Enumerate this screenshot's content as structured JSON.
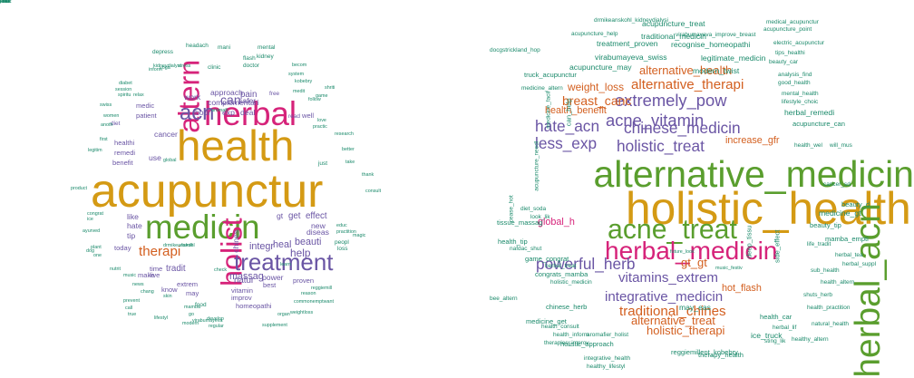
{
  "palette": {
    "teal": "#1b8a6b",
    "orange": "#d35f1f",
    "purple": "#6a55a4",
    "magenta": "#d6237a",
    "green": "#5a9e2e",
    "gold": "#d49a14"
  },
  "left_cloud": [
    {
      "t": "acupunctur",
      "s": 48,
      "c": "gold"
    },
    {
      "t": "health",
      "s": 44,
      "c": "gold"
    },
    {
      "t": "medicin",
      "s": 34,
      "c": "green"
    },
    {
      "t": "herbal",
      "s": 34,
      "c": "magenta"
    },
    {
      "t": "altern",
      "s": 30,
      "c": "magenta",
      "r": true
    },
    {
      "t": "holist",
      "s": 30,
      "c": "magenta",
      "r": true
    },
    {
      "t": "treatment",
      "s": 24,
      "c": "purple"
    },
    {
      "t": "acn",
      "s": 22,
      "c": "purple"
    },
    {
      "t": "therapi",
      "s": 14,
      "c": "orange"
    },
    {
      "t": "can",
      "s": 13,
      "c": "purple"
    },
    {
      "t": "help",
      "s": 11,
      "c": "purple"
    },
    {
      "t": "integr",
      "s": 10,
      "c": "purple"
    },
    {
      "t": "heal",
      "s": 10,
      "c": "purple"
    },
    {
      "t": "beauti",
      "s": 10,
      "c": "purple"
    },
    {
      "t": "massag",
      "s": 10,
      "c": "purple"
    },
    {
      "t": "natur",
      "s": 9,
      "c": "purple"
    },
    {
      "t": "tradit",
      "s": 9,
      "c": "purple"
    },
    {
      "t": "power",
      "s": 8,
      "c": "purple"
    },
    {
      "t": "exp",
      "s": 8,
      "c": "purple"
    },
    {
      "t": "deal",
      "s": 8,
      "c": "purple"
    },
    {
      "t": "bodi",
      "s": 8,
      "c": "purple"
    },
    {
      "t": "pain",
      "s": 9,
      "c": "purple"
    },
    {
      "t": "safer",
      "s": 8,
      "c": "purple"
    },
    {
      "t": "complementari",
      "s": 8,
      "c": "purple"
    },
    {
      "t": "work",
      "s": 8,
      "c": "purple"
    },
    {
      "t": "approach",
      "s": 8,
      "c": "purple"
    },
    {
      "t": "cancer",
      "s": 8,
      "c": "purple"
    },
    {
      "t": "use",
      "s": 8,
      "c": "purple"
    },
    {
      "t": "gt",
      "s": 8,
      "c": "purple"
    },
    {
      "t": "get",
      "s": 9,
      "c": "purple"
    },
    {
      "t": "effect",
      "s": 9,
      "c": "purple"
    },
    {
      "t": "new",
      "s": 8,
      "c": "purple"
    },
    {
      "t": "diseas",
      "s": 8,
      "c": "purple"
    },
    {
      "t": "like",
      "s": 8,
      "c": "purple"
    },
    {
      "t": "hate",
      "s": 8,
      "c": "purple"
    },
    {
      "t": "tip",
      "s": 8,
      "c": "purple"
    },
    {
      "t": "extrem",
      "s": 7,
      "c": "purple"
    },
    {
      "t": "vitamin",
      "s": 7,
      "c": "purple"
    },
    {
      "t": "improv",
      "s": 7,
      "c": "purple"
    },
    {
      "t": "homeopathi",
      "s": 7,
      "c": "purple"
    },
    {
      "t": "best",
      "s": 7,
      "c": "purple"
    },
    {
      "t": "proven",
      "s": 7,
      "c": "purple"
    },
    {
      "t": "may",
      "s": 7,
      "c": "purple"
    },
    {
      "t": "chines",
      "s": 8,
      "c": "purple",
      "r": true
    },
    {
      "t": "time",
      "s": 7,
      "c": "purple"
    },
    {
      "t": "live",
      "s": 7,
      "c": "purple"
    },
    {
      "t": "today",
      "s": 7,
      "c": "purple"
    },
    {
      "t": "make",
      "s": 7,
      "c": "purple"
    },
    {
      "t": "know",
      "s": 7,
      "c": "purple"
    },
    {
      "t": "healthi",
      "s": 7,
      "c": "purple"
    },
    {
      "t": "patient",
      "s": 7,
      "c": "purple"
    },
    {
      "t": "medic",
      "s": 7,
      "c": "purple"
    },
    {
      "t": "remedi",
      "s": 7,
      "c": "purple"
    },
    {
      "t": "benefit",
      "s": 7,
      "c": "purple"
    },
    {
      "t": "diet",
      "s": 6,
      "c": "purple"
    },
    {
      "t": "well",
      "s": 7,
      "c": "purple"
    },
    {
      "t": "read",
      "s": 6,
      "c": "purple"
    },
    {
      "t": "free",
      "s": 6,
      "c": "purple"
    },
    {
      "t": "peopl",
      "s": 6,
      "c": "teal"
    },
    {
      "t": "loss",
      "s": 6,
      "c": "teal"
    },
    {
      "t": "just",
      "s": 6,
      "c": "teal"
    },
    {
      "t": "food",
      "s": 6,
      "c": "teal"
    },
    {
      "t": "clinic",
      "s": 6,
      "c": "teal"
    },
    {
      "t": "doctor",
      "s": 6,
      "c": "teal"
    },
    {
      "t": "flash",
      "s": 6,
      "c": "teal"
    },
    {
      "t": "kidney",
      "s": 6,
      "c": "teal"
    },
    {
      "t": "mani",
      "s": 6,
      "c": "teal"
    },
    {
      "t": "mental",
      "s": 6,
      "c": "teal"
    },
    {
      "t": "headach",
      "s": 6,
      "c": "teal"
    },
    {
      "t": "depress",
      "s": 6,
      "c": "teal"
    },
    {
      "t": "kidneydialysi",
      "s": 5,
      "c": "teal"
    },
    {
      "t": "yoga",
      "s": 5,
      "c": "teal"
    },
    {
      "t": "stress",
      "s": 5,
      "c": "teal"
    },
    {
      "t": "inform",
      "s": 5,
      "c": "teal"
    },
    {
      "t": "diabet",
      "s": 5,
      "c": "teal"
    },
    {
      "t": "session",
      "s": 5,
      "c": "teal"
    },
    {
      "t": "spiritu",
      "s": 5,
      "c": "teal"
    },
    {
      "t": "relax",
      "s": 5,
      "c": "teal"
    },
    {
      "t": "swiss",
      "s": 5,
      "c": "teal"
    },
    {
      "t": "women",
      "s": 5,
      "c": "teal"
    },
    {
      "t": "anoth",
      "s": 5,
      "c": "teal"
    },
    {
      "t": "first",
      "s": 5,
      "c": "teal"
    },
    {
      "t": "legitim",
      "s": 5,
      "c": "teal"
    },
    {
      "t": "product",
      "s": 5,
      "c": "teal"
    },
    {
      "t": "congrat",
      "s": 5,
      "c": "teal"
    },
    {
      "t": "ice",
      "s": 5,
      "c": "teal"
    },
    {
      "t": "ayurved",
      "s": 5,
      "c": "teal"
    },
    {
      "t": "plant",
      "s": 5,
      "c": "teal"
    },
    {
      "t": "dog",
      "s": 5,
      "c": "teal"
    },
    {
      "t": "one",
      "s": 5,
      "c": "teal"
    },
    {
      "t": "nutrit",
      "s": 5,
      "c": "teal"
    },
    {
      "t": "music",
      "s": 5,
      "c": "teal"
    },
    {
      "t": "news",
      "s": 5,
      "c": "teal"
    },
    {
      "t": "chang",
      "s": 5,
      "c": "teal"
    },
    {
      "t": "prevent",
      "s": 5,
      "c": "teal"
    },
    {
      "t": "call",
      "s": 5,
      "c": "teal"
    },
    {
      "t": "true",
      "s": 5,
      "c": "teal"
    },
    {
      "t": "lifestyl",
      "s": 5,
      "c": "teal"
    },
    {
      "t": "modern",
      "s": 5,
      "c": "teal"
    },
    {
      "t": "virabumayeva",
      "s": 5,
      "c": "teal"
    },
    {
      "t": "regular",
      "s": 5,
      "c": "teal"
    },
    {
      "t": "supplement",
      "s": 5,
      "c": "teal"
    },
    {
      "t": "organ",
      "s": 5,
      "c": "teal"
    },
    {
      "t": "weightloss",
      "s": 5,
      "c": "teal"
    },
    {
      "t": "commonemptwant",
      "s": 5,
      "c": "teal"
    },
    {
      "t": "reggiemill",
      "s": 5,
      "c": "teal"
    },
    {
      "t": "reason",
      "s": 5,
      "c": "teal"
    },
    {
      "t": "practition",
      "s": 5,
      "c": "teal"
    },
    {
      "t": "educ",
      "s": 5,
      "c": "teal"
    },
    {
      "t": "magic",
      "s": 5,
      "c": "teal"
    },
    {
      "t": "consult",
      "s": 5,
      "c": "teal"
    },
    {
      "t": "thank",
      "s": 5,
      "c": "teal"
    },
    {
      "t": "take",
      "s": 5,
      "c": "teal"
    },
    {
      "t": "research",
      "s": 5,
      "c": "teal"
    },
    {
      "t": "better",
      "s": 5,
      "c": "teal"
    },
    {
      "t": "love",
      "s": 5,
      "c": "teal"
    },
    {
      "t": "practic",
      "s": 5,
      "c": "teal"
    },
    {
      "t": "follow",
      "s": 5,
      "c": "teal"
    },
    {
      "t": "game",
      "s": 5,
      "c": "teal"
    },
    {
      "t": "medit",
      "s": 5,
      "c": "teal"
    },
    {
      "t": "system",
      "s": 5,
      "c": "teal"
    },
    {
      "t": "kobebry",
      "s": 5,
      "c": "teal"
    },
    {
      "t": "becom",
      "s": 5,
      "c": "teal"
    },
    {
      "t": "shriti",
      "s": 5,
      "c": "teal"
    },
    {
      "t": "aromafi",
      "s": 5,
      "c": "teal"
    },
    {
      "t": "global",
      "s": 5,
      "c": "teal"
    },
    {
      "t": "develop",
      "s": 5,
      "c": "teal"
    },
    {
      "t": "learn",
      "s": 5,
      "c": "teal"
    },
    {
      "t": "check",
      "s": 5,
      "c": "teal"
    },
    {
      "t": "drmikeanskohl",
      "s": 5,
      "c": "teal"
    },
    {
      "t": "famili",
      "s": 5,
      "c": "teal"
    },
    {
      "t": "mamba",
      "s": 5,
      "c": "teal"
    },
    {
      "t": "skin",
      "s": 5,
      "c": "teal"
    },
    {
      "t": "go",
      "s": 5,
      "c": "teal"
    },
    {
      "t": "also",
      "s": 5,
      "c": "teal"
    },
    {
      "t": "studi",
      "s": 5,
      "c": "teal"
    },
    {
      "t": "now",
      "s": 5,
      "c": "teal"
    },
    {
      "t": "choic",
      "s": 5,
      "c": "teal"
    },
    {
      "t": "soda",
      "s": 5,
      "c": "teal"
    },
    {
      "t": "point",
      "s": 5,
      "c": "teal"
    },
    {
      "t": "side",
      "s": 5,
      "c": "teal"
    },
    {
      "t": "mind",
      "s": 5,
      "c": "teal"
    }
  ],
  "right_cloud": [
    {
      "t": "holistic_health",
      "s": 46,
      "c": "gold"
    },
    {
      "t": "alternative_medicin",
      "s": 38,
      "c": "green"
    },
    {
      "t": "herbal_acn",
      "s": 36,
      "c": "green",
      "r": true
    },
    {
      "t": "acne_treat",
      "s": 28,
      "c": "green"
    },
    {
      "t": "herbal_medicin",
      "s": 26,
      "c": "magenta"
    },
    {
      "t": "extremely_pow",
      "s": 17,
      "c": "purple"
    },
    {
      "t": "acne_vitamin",
      "s": 17,
      "c": "purple"
    },
    {
      "t": "chinese_medicin",
      "s": 16,
      "c": "purple"
    },
    {
      "t": "hate_acn",
      "s": 16,
      "c": "purple"
    },
    {
      "t": "less_exp",
      "s": 16,
      "c": "purple"
    },
    {
      "t": "holistic_treat",
      "s": 16,
      "c": "purple"
    },
    {
      "t": "powerful_herb",
      "s": 16,
      "c": "purple"
    },
    {
      "t": "vitamins_extrem",
      "s": 14,
      "c": "purple"
    },
    {
      "t": "integrative_medicin",
      "s": 14,
      "c": "purple"
    },
    {
      "t": "alternative_therapi",
      "s": 14,
      "c": "orange"
    },
    {
      "t": "alternative_health",
      "s": 12,
      "c": "orange"
    },
    {
      "t": "breast_canc",
      "s": 13,
      "c": "orange"
    },
    {
      "t": "weight_loss",
      "s": 11,
      "c": "orange"
    },
    {
      "t": "health_benefit",
      "s": 10,
      "c": "orange"
    },
    {
      "t": "traditional_chines",
      "s": 14,
      "c": "orange"
    },
    {
      "t": "alternative_treat",
      "s": 12,
      "c": "orange"
    },
    {
      "t": "holistic_therapi",
      "s": 12,
      "c": "orange"
    },
    {
      "t": "gt_gt",
      "s": 12,
      "c": "orange"
    },
    {
      "t": "global_h",
      "s": 10,
      "c": "magenta"
    },
    {
      "t": "increase_gfr",
      "s": 10,
      "c": "orange"
    },
    {
      "t": "hot_flash",
      "s": 10,
      "c": "orange"
    },
    {
      "t": "acupuncture_treat",
      "s": 8,
      "c": "teal"
    },
    {
      "t": "traditional_medicin",
      "s": 8,
      "c": "teal"
    },
    {
      "t": "treatment_proven",
      "s": 8,
      "c": "teal"
    },
    {
      "t": "recognise_homeopathi",
      "s": 8,
      "c": "teal"
    },
    {
      "t": "legitimate_medicin",
      "s": 8,
      "c": "teal"
    },
    {
      "t": "virabumayeva_swiss",
      "s": 8,
      "c": "teal"
    },
    {
      "t": "acupuncture_may",
      "s": 8,
      "c": "teal"
    },
    {
      "t": "modern_twist",
      "s": 8,
      "c": "teal"
    },
    {
      "t": "truck_acupunctur",
      "s": 7,
      "c": "teal"
    },
    {
      "t": "docgstrickland_hop",
      "s": 6,
      "c": "teal"
    },
    {
      "t": "drmikeanskohl_kidneydialysi",
      "s": 6,
      "c": "teal"
    },
    {
      "t": "acupuncture_help",
      "s": 6,
      "c": "teal"
    },
    {
      "t": "virabumayeva_improve_breast",
      "s": 6,
      "c": "teal"
    },
    {
      "t": "medical_acupunctur",
      "s": 6,
      "c": "teal"
    },
    {
      "t": "acupuncture_point",
      "s": 6,
      "c": "teal"
    },
    {
      "t": "electric_acupunctur",
      "s": 6,
      "c": "teal"
    },
    {
      "t": "tips_healthi",
      "s": 6,
      "c": "teal"
    },
    {
      "t": "beauty_car",
      "s": 6,
      "c": "teal"
    },
    {
      "t": "analysis_find",
      "s": 6,
      "c": "teal"
    },
    {
      "t": "good_health",
      "s": 6,
      "c": "teal"
    },
    {
      "t": "mental_health",
      "s": 6,
      "c": "teal"
    },
    {
      "t": "lifestyle_choic",
      "s": 6,
      "c": "teal"
    },
    {
      "t": "herbal_remedi",
      "s": 8,
      "c": "teal"
    },
    {
      "t": "acupuncture_can",
      "s": 7,
      "c": "teal"
    },
    {
      "t": "health_wel",
      "s": 6,
      "c": "teal"
    },
    {
      "t": "will_mus",
      "s": 6,
      "c": "teal"
    },
    {
      "t": "cancer_sd",
      "s": 6,
      "c": "teal"
    },
    {
      "t": "beauty_d",
      "s": 7,
      "c": "teal"
    },
    {
      "t": "medicine_gt",
      "s": 8,
      "c": "teal"
    },
    {
      "t": "beauty_tip",
      "s": 7,
      "c": "teal"
    },
    {
      "t": "mamba_empti",
      "s": 7,
      "c": "teal"
    },
    {
      "t": "life_tradit",
      "s": 6,
      "c": "teal"
    },
    {
      "t": "herbal_tea",
      "s": 6,
      "c": "teal"
    },
    {
      "t": "herbal_suppl",
      "s": 6,
      "c": "teal"
    },
    {
      "t": "sub_health",
      "s": 6,
      "c": "teal"
    },
    {
      "t": "health_altern",
      "s": 6,
      "c": "teal"
    },
    {
      "t": "shuts_herb",
      "s": 6,
      "c": "teal"
    },
    {
      "t": "health_practition",
      "s": 6,
      "c": "teal"
    },
    {
      "t": "natural_health",
      "s": 6,
      "c": "teal"
    },
    {
      "t": "healthy_altern",
      "s": 6,
      "c": "teal"
    },
    {
      "t": "medicine_altern",
      "s": 6,
      "c": "teal"
    },
    {
      "t": "acupuncture_needl",
      "s": 6,
      "c": "teal",
      "r": true
    },
    {
      "t": "diet_soda",
      "s": 6,
      "c": "teal"
    },
    {
      "t": "look_lik",
      "s": 6,
      "c": "teal"
    },
    {
      "t": "tissue_massag",
      "s": 7,
      "c": "teal"
    },
    {
      "t": "health_tip",
      "s": 7,
      "c": "teal"
    },
    {
      "t": "nafdac_shut",
      "s": 6,
      "c": "teal"
    },
    {
      "t": "game_congrat",
      "s": 7,
      "c": "teal"
    },
    {
      "t": "herbal_treat",
      "s": 6,
      "c": "teal"
    },
    {
      "t": "congrats_mamba",
      "s": 7,
      "c": "teal"
    },
    {
      "t": "holistic_medicin",
      "s": 6,
      "c": "teal"
    },
    {
      "t": "bee_altern",
      "s": 6,
      "c": "teal"
    },
    {
      "t": "chinese_herb",
      "s": 7,
      "c": "teal"
    },
    {
      "t": "may_eas",
      "s": 8,
      "c": "teal"
    },
    {
      "t": "health_car",
      "s": 7,
      "c": "teal"
    },
    {
      "t": "herbal_lif",
      "s": 6,
      "c": "teal"
    },
    {
      "t": "ice_truck",
      "s": 8,
      "c": "teal"
    },
    {
      "t": "sting_lik",
      "s": 6,
      "c": "teal"
    },
    {
      "t": "medicine_get",
      "s": 7,
      "c": "teal"
    },
    {
      "t": "health_consult",
      "s": 6,
      "c": "teal"
    },
    {
      "t": "health_inform",
      "s": 6,
      "c": "teal"
    },
    {
      "t": "holistic_approach",
      "s": 7,
      "c": "teal"
    },
    {
      "t": "aromafier_holist",
      "s": 6,
      "c": "teal"
    },
    {
      "t": "therapies_improv",
      "s": 6,
      "c": "teal"
    },
    {
      "t": "reggiemillent_kobebry",
      "s": 7,
      "c": "teal"
    },
    {
      "t": "therapy_health",
      "s": 7,
      "c": "teal"
    },
    {
      "t": "integrative_health",
      "s": 6,
      "c": "teal"
    },
    {
      "t": "healthy_lifestyl",
      "s": 6,
      "c": "teal"
    },
    {
      "t": "future_look",
      "s": 5,
      "c": "teal"
    },
    {
      "t": "music_festiv",
      "s": 5,
      "c": "teal"
    },
    {
      "t": "side_effect",
      "s": 7,
      "c": "teal",
      "r": true
    },
    {
      "t": "deep_tissu",
      "s": 7,
      "c": "teal",
      "r": true
    },
    {
      "t": "cease_hot",
      "s": 6,
      "c": "teal",
      "r": true
    },
    {
      "t": "medicine_facil",
      "s": 6,
      "c": "teal",
      "r": true
    },
    {
      "t": "can_help",
      "s": 7,
      "c": "teal",
      "r": true
    }
  ]
}
